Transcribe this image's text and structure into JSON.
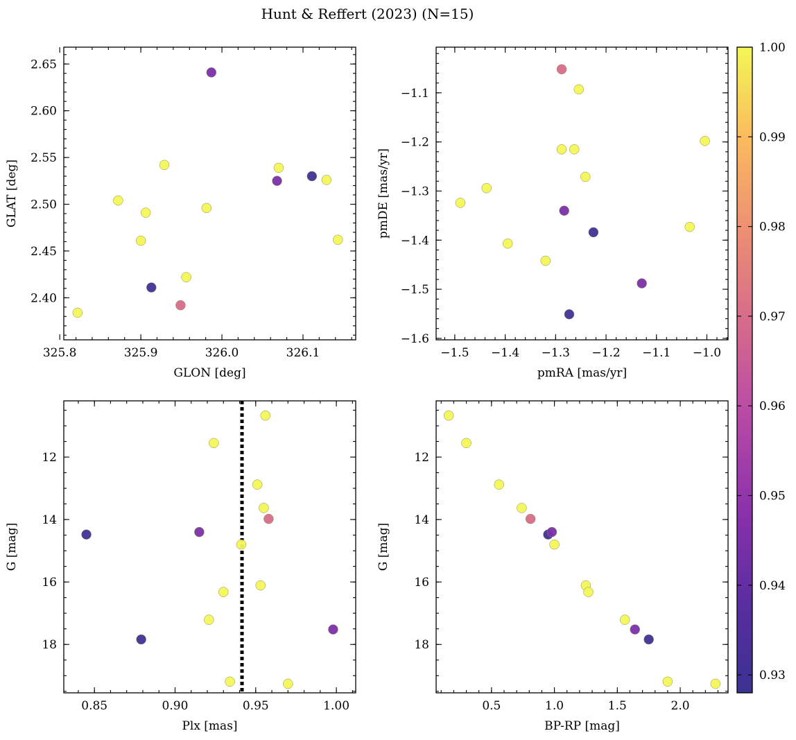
{
  "figure": {
    "title": "Hunt & Reffert (2023) (N=15)"
  },
  "colorbar": {
    "ticks": [
      "0.93",
      "0.94",
      "0.95",
      "0.96",
      "0.97",
      "0.98",
      "0.99",
      "1.00"
    ],
    "tick_values": [
      0.93,
      0.94,
      0.95,
      0.96,
      0.97,
      0.98,
      0.99,
      1.0
    ],
    "range": [
      0.928,
      1.0
    ],
    "colormap": "plasma"
  },
  "chart_data": [
    {
      "type": "scatter",
      "id": "glon-glat",
      "xlabel": "GLON [deg]",
      "ylabel": "GLAT [deg]",
      "xlim": [
        325.805,
        326.165
      ],
      "ylim": [
        2.355,
        2.668
      ],
      "xticks": [
        325.8,
        325.9,
        326.0,
        326.1
      ],
      "xtick_labels": [
        "325.8",
        "325.9",
        "326.0",
        "326.1"
      ],
      "xtick_minor_step": 0.02,
      "yticks": [
        2.4,
        2.45,
        2.5,
        2.55,
        2.6,
        2.65
      ],
      "ytick_labels": [
        "2.40",
        "2.45",
        "2.50",
        "2.55",
        "2.60",
        "2.65"
      ],
      "ytick_minor_step": 0.01,
      "y_inverted": false,
      "points": [
        {
          "x": 325.822,
          "y": 2.384,
          "c": 1.0
        },
        {
          "x": 325.872,
          "y": 2.504,
          "c": 1.0
        },
        {
          "x": 325.9,
          "y": 2.461,
          "c": 1.0
        },
        {
          "x": 325.906,
          "y": 2.491,
          "c": 1.0
        },
        {
          "x": 325.913,
          "y": 2.411,
          "c": 0.93
        },
        {
          "x": 325.929,
          "y": 2.542,
          "c": 1.0
        },
        {
          "x": 325.949,
          "y": 2.392,
          "c": 0.97
        },
        {
          "x": 325.956,
          "y": 2.422,
          "c": 1.0
        },
        {
          "x": 325.981,
          "y": 2.496,
          "c": 1.0
        },
        {
          "x": 325.987,
          "y": 2.641,
          "c": 0.945
        },
        {
          "x": 326.068,
          "y": 2.525,
          "c": 0.945
        },
        {
          "x": 326.07,
          "y": 2.539,
          "c": 1.0
        },
        {
          "x": 326.111,
          "y": 2.53,
          "c": 0.93
        },
        {
          "x": 326.129,
          "y": 2.526,
          "c": 1.0
        },
        {
          "x": 326.143,
          "y": 2.462,
          "c": 1.0
        }
      ]
    },
    {
      "type": "scatter",
      "id": "pmra-pmde",
      "xlabel": "pmRA [mas/yr]",
      "ylabel": "pmDE [mas/yr]",
      "xlim": [
        -1.537,
        -0.958
      ],
      "ylim": [
        -1.603,
        -1.007
      ],
      "xticks": [
        -1.5,
        -1.4,
        -1.3,
        -1.2,
        -1.1,
        -1.0
      ],
      "xtick_labels": [
        "−1.5",
        "−1.4",
        "−1.3",
        "−1.2",
        "−1.1",
        "−1.0"
      ],
      "xtick_minor_step": 0.02,
      "yticks": [
        -1.6,
        -1.5,
        -1.4,
        -1.3,
        -1.2,
        -1.1
      ],
      "ytick_labels": [
        "−1.6",
        "−1.5",
        "−1.4",
        "−1.3",
        "−1.2",
        "−1.1"
      ],
      "ytick_minor_step": 0.02,
      "y_inverted": false,
      "points": [
        {
          "x": -1.489,
          "y": -1.324,
          "c": 1.0
        },
        {
          "x": -1.437,
          "y": -1.294,
          "c": 1.0
        },
        {
          "x": -1.395,
          "y": -1.407,
          "c": 1.0
        },
        {
          "x": -1.32,
          "y": -1.442,
          "c": 1.0
        },
        {
          "x": -1.288,
          "y": -1.052,
          "c": 0.97
        },
        {
          "x": -1.288,
          "y": -1.215,
          "c": 1.0
        },
        {
          "x": -1.283,
          "y": -1.34,
          "c": 0.945
        },
        {
          "x": -1.273,
          "y": -1.551,
          "c": 0.93
        },
        {
          "x": -1.263,
          "y": -1.215,
          "c": 1.0
        },
        {
          "x": -1.254,
          "y": -1.093,
          "c": 1.0
        },
        {
          "x": -1.241,
          "y": -1.271,
          "c": 1.0
        },
        {
          "x": -1.225,
          "y": -1.384,
          "c": 0.93
        },
        {
          "x": -1.129,
          "y": -1.488,
          "c": 0.945
        },
        {
          "x": -1.034,
          "y": -1.373,
          "c": 1.0
        },
        {
          "x": -1.004,
          "y": -1.198,
          "c": 1.0
        }
      ]
    },
    {
      "type": "scatter",
      "id": "plx-g",
      "xlabel": "Plx [mas]",
      "ylabel": "G [mag]",
      "xlim": [
        0.831,
        1.012
      ],
      "ylim": [
        19.55,
        10.2
      ],
      "xticks": [
        0.85,
        0.9,
        0.95,
        1.0
      ],
      "xtick_labels": [
        "0.85",
        "0.90",
        "0.95",
        "1.00"
      ],
      "xtick_minor_step": 0.01,
      "yticks": [
        12,
        14,
        16,
        18
      ],
      "ytick_labels": [
        "12",
        "14",
        "16",
        "18"
      ],
      "ytick_minor_step": 0.5,
      "y_inverted": true,
      "vline": {
        "x": 0.9415,
        "style": "dotted"
      },
      "points": [
        {
          "x": 0.956,
          "y": 10.67,
          "c": 1.0
        },
        {
          "x": 0.924,
          "y": 11.55,
          "c": 1.0
        },
        {
          "x": 0.951,
          "y": 12.88,
          "c": 1.0
        },
        {
          "x": 0.955,
          "y": 13.63,
          "c": 1.0
        },
        {
          "x": 0.958,
          "y": 13.98,
          "c": 0.97
        },
        {
          "x": 0.915,
          "y": 14.4,
          "c": 0.945
        },
        {
          "x": 0.845,
          "y": 14.48,
          "c": 0.93
        },
        {
          "x": 0.941,
          "y": 14.8,
          "c": 1.0
        },
        {
          "x": 0.953,
          "y": 16.11,
          "c": 1.0
        },
        {
          "x": 0.93,
          "y": 16.32,
          "c": 1.0
        },
        {
          "x": 0.921,
          "y": 17.21,
          "c": 1.0
        },
        {
          "x": 0.998,
          "y": 17.52,
          "c": 0.945
        },
        {
          "x": 0.879,
          "y": 17.84,
          "c": 0.93
        },
        {
          "x": 0.934,
          "y": 19.19,
          "c": 1.0
        },
        {
          "x": 0.97,
          "y": 19.26,
          "c": 1.0
        }
      ]
    },
    {
      "type": "scatter",
      "id": "bprp-g",
      "xlabel": "BP-RP [mag]",
      "ylabel": "G [mag]",
      "xlim": [
        0.06,
        2.38
      ],
      "ylim": [
        19.55,
        10.2
      ],
      "xticks": [
        0.5,
        1.0,
        1.5,
        2.0
      ],
      "xtick_labels": [
        "0.5",
        "1.0",
        "1.5",
        "2.0"
      ],
      "xtick_minor_step": 0.1,
      "yticks": [
        12,
        14,
        16,
        18
      ],
      "ytick_labels": [
        "12",
        "14",
        "16",
        "18"
      ],
      "ytick_minor_step": 0.5,
      "y_inverted": true,
      "points": [
        {
          "x": 0.16,
          "y": 10.67,
          "c": 1.0
        },
        {
          "x": 0.3,
          "y": 11.55,
          "c": 1.0
        },
        {
          "x": 0.56,
          "y": 12.88,
          "c": 1.0
        },
        {
          "x": 0.74,
          "y": 13.63,
          "c": 1.0
        },
        {
          "x": 0.81,
          "y": 13.98,
          "c": 0.97
        },
        {
          "x": 0.95,
          "y": 14.48,
          "c": 0.93
        },
        {
          "x": 0.98,
          "y": 14.4,
          "c": 0.945
        },
        {
          "x": 1.0,
          "y": 14.8,
          "c": 1.0
        },
        {
          "x": 1.25,
          "y": 16.11,
          "c": 1.0
        },
        {
          "x": 1.27,
          "y": 16.32,
          "c": 1.0
        },
        {
          "x": 1.56,
          "y": 17.21,
          "c": 1.0
        },
        {
          "x": 1.64,
          "y": 17.52,
          "c": 0.945
        },
        {
          "x": 1.75,
          "y": 17.84,
          "c": 0.93
        },
        {
          "x": 1.9,
          "y": 19.19,
          "c": 1.0
        },
        {
          "x": 2.28,
          "y": 19.26,
          "c": 1.0
        }
      ]
    }
  ]
}
